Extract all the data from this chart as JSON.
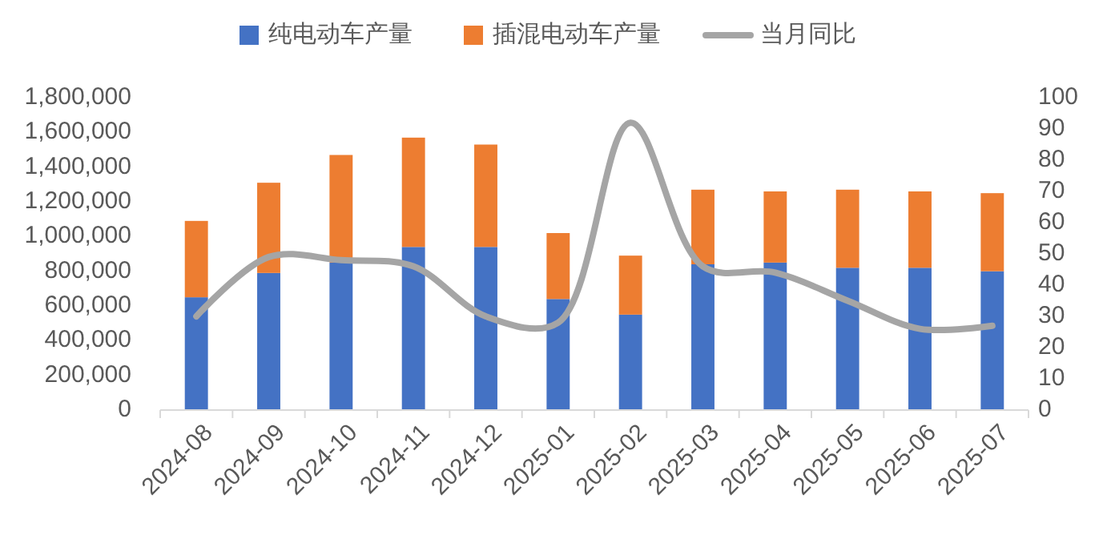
{
  "chart_data": {
    "type": "bar",
    "stacked": true,
    "categories": [
      "2024-08",
      "2024-09",
      "2024-10",
      "2024-11",
      "2024-12",
      "2025-01",
      "2025-02",
      "2025-03",
      "2025-04",
      "2025-05",
      "2025-06",
      "2025-07"
    ],
    "series": [
      {
        "name": "纯电动车产量",
        "color": "#4472c4",
        "values": [
          650000,
          790000,
          850000,
          940000,
          940000,
          640000,
          550000,
          840000,
          850000,
          820000,
          820000,
          800000
        ]
      },
      {
        "name": "插混电动车产量",
        "color": "#ed7d31",
        "values": [
          440000,
          520000,
          620000,
          630000,
          590000,
          380000,
          340000,
          430000,
          410000,
          450000,
          440000,
          450000
        ]
      },
      {
        "name": "当月同比",
        "color": "#a5a5a5",
        "type": "line",
        "axis": "y2",
        "values": [
          30,
          49,
          48,
          46,
          30,
          28,
          92,
          46,
          44,
          35,
          26,
          27
        ]
      }
    ],
    "ylim": [
      0,
      1800000
    ],
    "yticks": [
      {
        "value": 0,
        "label": "0"
      },
      {
        "value": 200000,
        "label": "200,000"
      },
      {
        "value": 400000,
        "label": "400,000"
      },
      {
        "value": 600000,
        "label": "600,000"
      },
      {
        "value": 800000,
        "label": "800,000"
      },
      {
        "value": 1000000,
        "label": "1,000,000"
      },
      {
        "value": 1200000,
        "label": "1,200,000"
      },
      {
        "value": 1400000,
        "label": "1,400,000"
      },
      {
        "value": 1600000,
        "label": "1,600,000"
      },
      {
        "value": 1800000,
        "label": "1,800,000"
      }
    ],
    "y2lim": [
      0,
      100
    ],
    "y2ticks": [
      0,
      10,
      20,
      30,
      40,
      50,
      60,
      70,
      80,
      90,
      100
    ],
    "legend": "top",
    "grid": false
  }
}
